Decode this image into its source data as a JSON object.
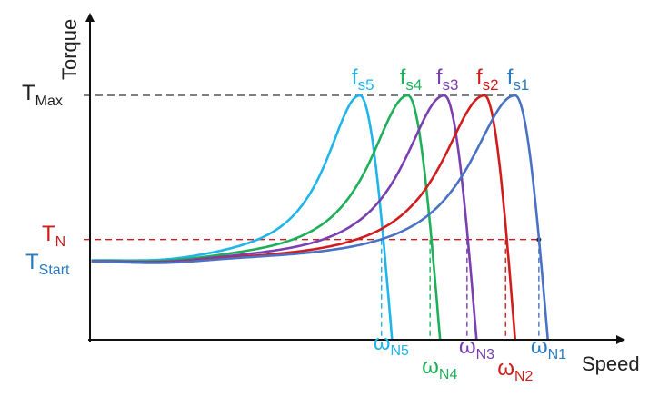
{
  "chart_data": {
    "type": "line",
    "xlabel": "Speed",
    "ylabel": "Torque",
    "xlim": [
      0,
      100
    ],
    "ylim": [
      0,
      1.2
    ],
    "levels": {
      "t_max": {
        "label": "T",
        "sub": "Max",
        "value": 1.0,
        "color": "#222222"
      },
      "t_n": {
        "label": "T",
        "sub": "N",
        "value": 0.41,
        "color": "#d01c1c"
      },
      "t_start": {
        "label": "T",
        "sub": "Start",
        "value": 0.31,
        "color": "#2a7bc0"
      }
    },
    "series": [
      {
        "name": "fs5",
        "label": "f",
        "sub": "s5",
        "color": "#1fb5e8",
        "peak_speed": 51.1,
        "zero_speed": 57.2,
        "width": 8.0,
        "rated_speed": 55.2,
        "rated_label": "ω",
        "rated_sub": "N5"
      },
      {
        "name": "fs4",
        "label": "f",
        "sub": "s4",
        "color": "#1eaf5a",
        "peak_speed": 60.2,
        "zero_speed": 66.3,
        "width": 9.0,
        "rated_speed": 64.4,
        "rated_label": "ω",
        "rated_sub": "N4"
      },
      {
        "name": "fs3",
        "label": "f",
        "sub": "s3",
        "color": "#7a3fb0",
        "peak_speed": 67.1,
        "zero_speed": 73.2,
        "width": 9.5,
        "rated_speed": 71.4,
        "rated_label": "ω",
        "rated_sub": "N3"
      },
      {
        "name": "fs2",
        "label": "f",
        "sub": "s2",
        "color": "#d01c1c",
        "peak_speed": 74.7,
        "zero_speed": 80.5,
        "width": 10.0,
        "rated_speed": 78.7,
        "rated_label": "ω",
        "rated_sub": "N2"
      },
      {
        "name": "fs1",
        "label": "f",
        "sub": "s1",
        "color": "#4a72c4",
        "peak_speed": 80.5,
        "zero_speed": 86.7,
        "width": 10.5,
        "rated_speed": 85.0,
        "rated_label": "ω",
        "rated_sub": "N1",
        "label_color": "#2a7bc0",
        "rated_color": "#2a7bc0"
      }
    ]
  }
}
